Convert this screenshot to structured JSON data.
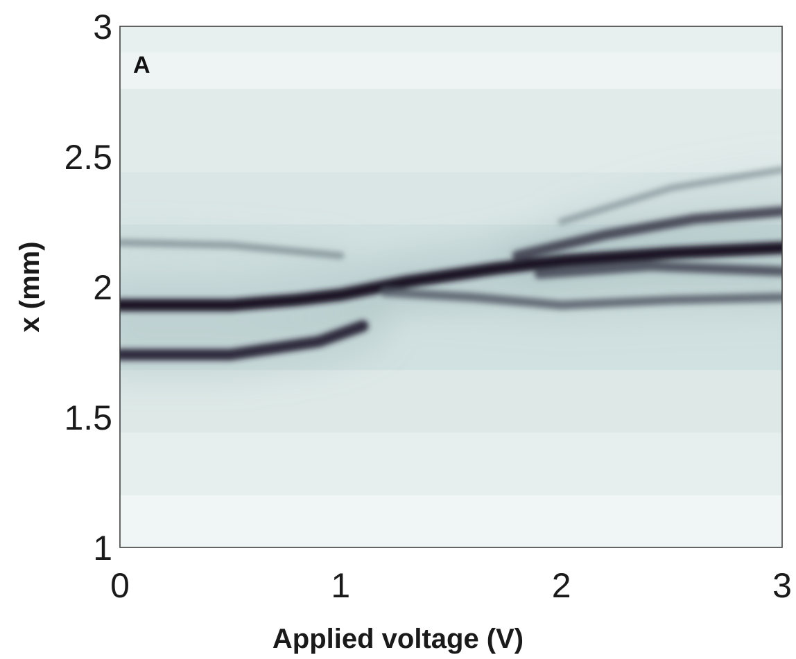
{
  "chart_data": {
    "type": "heatmap",
    "panel_label": "A",
    "xlabel": "Applied voltage (V)",
    "ylabel": "x (mm)",
    "xlim": [
      0,
      3
    ],
    "ylim": [
      1,
      3
    ],
    "xticks": [
      "0",
      "1",
      "2",
      "3"
    ],
    "yticks": [
      "1",
      "1.5",
      "2",
      "2.5",
      "3"
    ],
    "grid": false,
    "colormap": {
      "low": "#f2f7f6",
      "mid": "#9fb8b9",
      "high": "#1a1428"
    },
    "ridges": [
      {
        "name": "",
        "points": [
          [
            0,
            1.93
          ],
          [
            0.5,
            1.93
          ],
          [
            0.8,
            1.95
          ],
          [
            1.0,
            1.97
          ],
          [
            1.3,
            2.02
          ],
          [
            1.7,
            2.07
          ],
          [
            2.0,
            2.1
          ],
          [
            2.5,
            2.13
          ],
          [
            3.0,
            2.15
          ]
        ],
        "intensity": 1.0
      },
      {
        "name": "",
        "points": [
          [
            0,
            1.74
          ],
          [
            0.5,
            1.74
          ],
          [
            0.9,
            1.79
          ],
          [
            1.1,
            1.85
          ]
        ],
        "intensity": 0.9
      },
      {
        "name": "",
        "points": [
          [
            0,
            2.17
          ],
          [
            0.5,
            2.16
          ],
          [
            1.0,
            2.12
          ]
        ],
        "intensity": 0.35
      },
      {
        "name": "",
        "points": [
          [
            1.2,
            1.98
          ],
          [
            1.6,
            1.96
          ],
          [
            2.0,
            1.93
          ],
          [
            2.5,
            1.95
          ],
          [
            3.0,
            1.96
          ]
        ],
        "intensity": 0.6
      },
      {
        "name": "",
        "points": [
          [
            1.8,
            2.12
          ],
          [
            2.2,
            2.2
          ],
          [
            2.6,
            2.26
          ],
          [
            3.0,
            2.29
          ]
        ],
        "intensity": 0.75
      },
      {
        "name": "",
        "points": [
          [
            1.9,
            2.05
          ],
          [
            2.4,
            2.08
          ],
          [
            3.0,
            2.06
          ]
        ],
        "intensity": 0.7
      },
      {
        "name": "",
        "points": [
          [
            2.0,
            2.25
          ],
          [
            2.5,
            2.38
          ],
          [
            3.0,
            2.45
          ]
        ],
        "intensity": 0.3
      }
    ]
  }
}
